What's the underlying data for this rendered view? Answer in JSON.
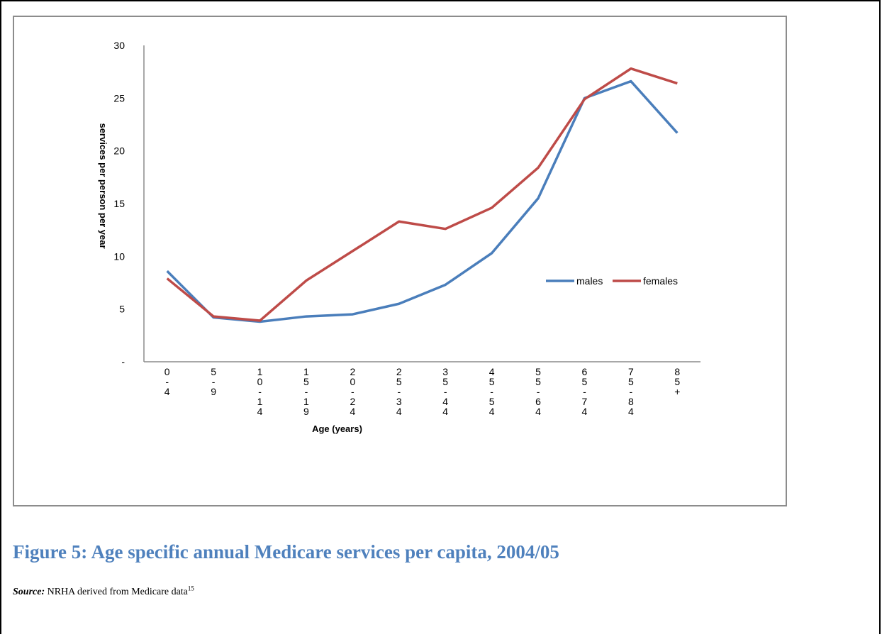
{
  "chart_data": {
    "type": "line",
    "categories": [
      "0-4",
      "5-9",
      "10-14",
      "15-19",
      "20-24",
      "25-34",
      "35-44",
      "45-54",
      "55-64",
      "65-74",
      "75-84",
      "85+"
    ],
    "series": [
      {
        "name": "males",
        "color": "#4a7ebb",
        "values": [
          8.6,
          4.2,
          3.8,
          4.3,
          4.5,
          5.5,
          7.3,
          10.3,
          15.5,
          25.0,
          26.6,
          21.7
        ]
      },
      {
        "name": "females",
        "color": "#be4b48",
        "values": [
          7.9,
          4.3,
          3.9,
          7.7,
          10.5,
          13.3,
          12.6,
          14.6,
          18.4,
          24.9,
          27.8,
          26.4
        ]
      }
    ],
    "y_ticks": [
      "-",
      "5",
      "10",
      "15",
      "20",
      "25",
      "30"
    ],
    "ylim": [
      0,
      30
    ],
    "xlabel": "Age (years)",
    "ylabel": "services per person per year",
    "legend_position": "right",
    "grid": false
  },
  "caption": {
    "figure_title": "Figure 5:  Age specific annual Medicare services per capita, 2004/05"
  },
  "source": {
    "label": "Source:",
    "text": " NRHA derived from Medicare data",
    "footnote": "15"
  }
}
